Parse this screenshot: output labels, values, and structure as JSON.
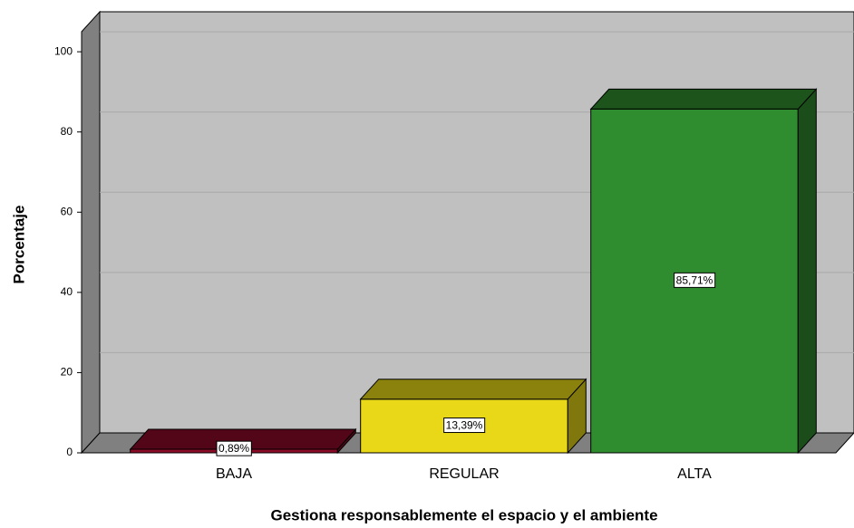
{
  "chart_data": {
    "type": "bar3d",
    "x_label": "Gestiona responsablemente el espacio y el ambiente",
    "y_label": "Porcentaje",
    "categories": [
      "BAJA",
      "REGULAR",
      "ALTA"
    ],
    "values": [
      0.89,
      13.39,
      85.71
    ],
    "value_labels": [
      "0,89%",
      "13,39%",
      "85,71%"
    ],
    "colors": [
      "#8b0a26",
      "#e8d817",
      "#2f8c2f"
    ],
    "ylim": [
      0,
      105
    ],
    "yticks": [
      0,
      20,
      40,
      60,
      80,
      100
    ],
    "grid": true
  }
}
